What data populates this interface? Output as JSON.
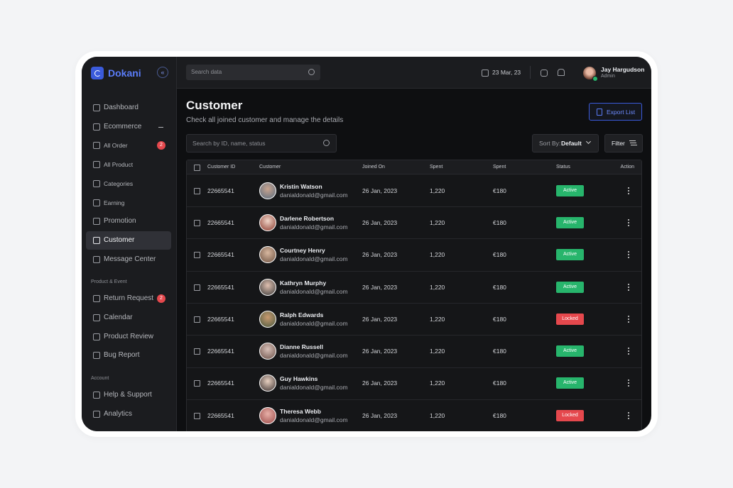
{
  "brand": "Dokani",
  "topbar": {
    "search_placeholder": "Search data",
    "date": "23 Mar, 23",
    "user": {
      "name": "Jay Hargudson",
      "role": "Admin"
    }
  },
  "sidebar": {
    "sections": [
      {
        "items": [
          {
            "label": "Dashboard"
          },
          {
            "label": "Ecommerce",
            "children": [
              {
                "label": "All Order",
                "badge": 2
              },
              {
                "label": "All Product"
              },
              {
                "label": "Categories"
              },
              {
                "label": "Earning"
              }
            ]
          },
          {
            "label": "Promotion"
          },
          {
            "label": "Customer",
            "active": true
          },
          {
            "label": "Message Center"
          }
        ]
      },
      {
        "title": "Product & Event",
        "items": [
          {
            "label": "Return Request",
            "badge": 2
          },
          {
            "label": "Calendar"
          },
          {
            "label": "Product Review"
          },
          {
            "label": "Bug Report"
          }
        ]
      },
      {
        "title": "Account",
        "items": [
          {
            "label": "Help & Support"
          },
          {
            "label": "Analytics"
          }
        ]
      }
    ]
  },
  "header": {
    "title": "Customer",
    "subtitle": "Check all joined customer and manage the details",
    "export_button": "Export List"
  },
  "toolbar": {
    "search_placeholder": "Search by ID, name, status",
    "sort_label": "Sort By:",
    "sort_value": "Default",
    "filter_button": "Filter"
  },
  "table": {
    "columns": [
      "Customer ID",
      "Customer",
      "Joined On",
      "Spent",
      "Spent",
      "Status",
      "Action"
    ],
    "rows": [
      {
        "id": "22665541",
        "name": "Kristin Watson",
        "email": "danialdonald@gmail.com",
        "joined": "26 Jan, 2023",
        "spent": "1,220",
        "amount": "€180",
        "status": {
          "label": "Active",
          "color": "#27b56c"
        }
      },
      {
        "id": "22665541",
        "name": "Darlene Robertson",
        "email": "danialdonald@gmail.com",
        "joined": "26 Jan, 2023",
        "spent": "1,220",
        "amount": "€180",
        "status": {
          "label": "Active",
          "color": "#27b56c"
        }
      },
      {
        "id": "22665541",
        "name": "Courtney Henry",
        "email": "danialdonald@gmail.com",
        "joined": "26 Jan, 2023",
        "spent": "1,220",
        "amount": "€180",
        "status": {
          "label": "Active",
          "color": "#27b56c"
        }
      },
      {
        "id": "22665541",
        "name": "Kathryn Murphy",
        "email": "danialdonald@gmail.com",
        "joined": "26 Jan, 2023",
        "spent": "1,220",
        "amount": "€180",
        "status": {
          "label": "Active",
          "color": "#27b56c"
        }
      },
      {
        "id": "22665541",
        "name": "Ralph Edwards",
        "email": "danialdonald@gmail.com",
        "joined": "26 Jan, 2023",
        "spent": "1,220",
        "amount": "€180",
        "status": {
          "label": "Locked",
          "color": "#e5484d"
        }
      },
      {
        "id": "22665541",
        "name": "Dianne Russell",
        "email": "danialdonald@gmail.com",
        "joined": "26 Jan, 2023",
        "spent": "1,220",
        "amount": "€180",
        "status": {
          "label": "Active",
          "color": "#27b56c"
        }
      },
      {
        "id": "22665541",
        "name": "Guy Hawkins",
        "email": "danialdonald@gmail.com",
        "joined": "26 Jan, 2023",
        "spent": "1,220",
        "amount": "€180",
        "status": {
          "label": "Active",
          "color": "#27b56c"
        }
      },
      {
        "id": "22665541",
        "name": "Theresa Webb",
        "email": "danialdonald@gmail.com",
        "joined": "26 Jan, 2023",
        "spent": "1,220",
        "amount": "€180",
        "status": {
          "label": "Locked",
          "color": "#e5484d"
        }
      }
    ]
  }
}
